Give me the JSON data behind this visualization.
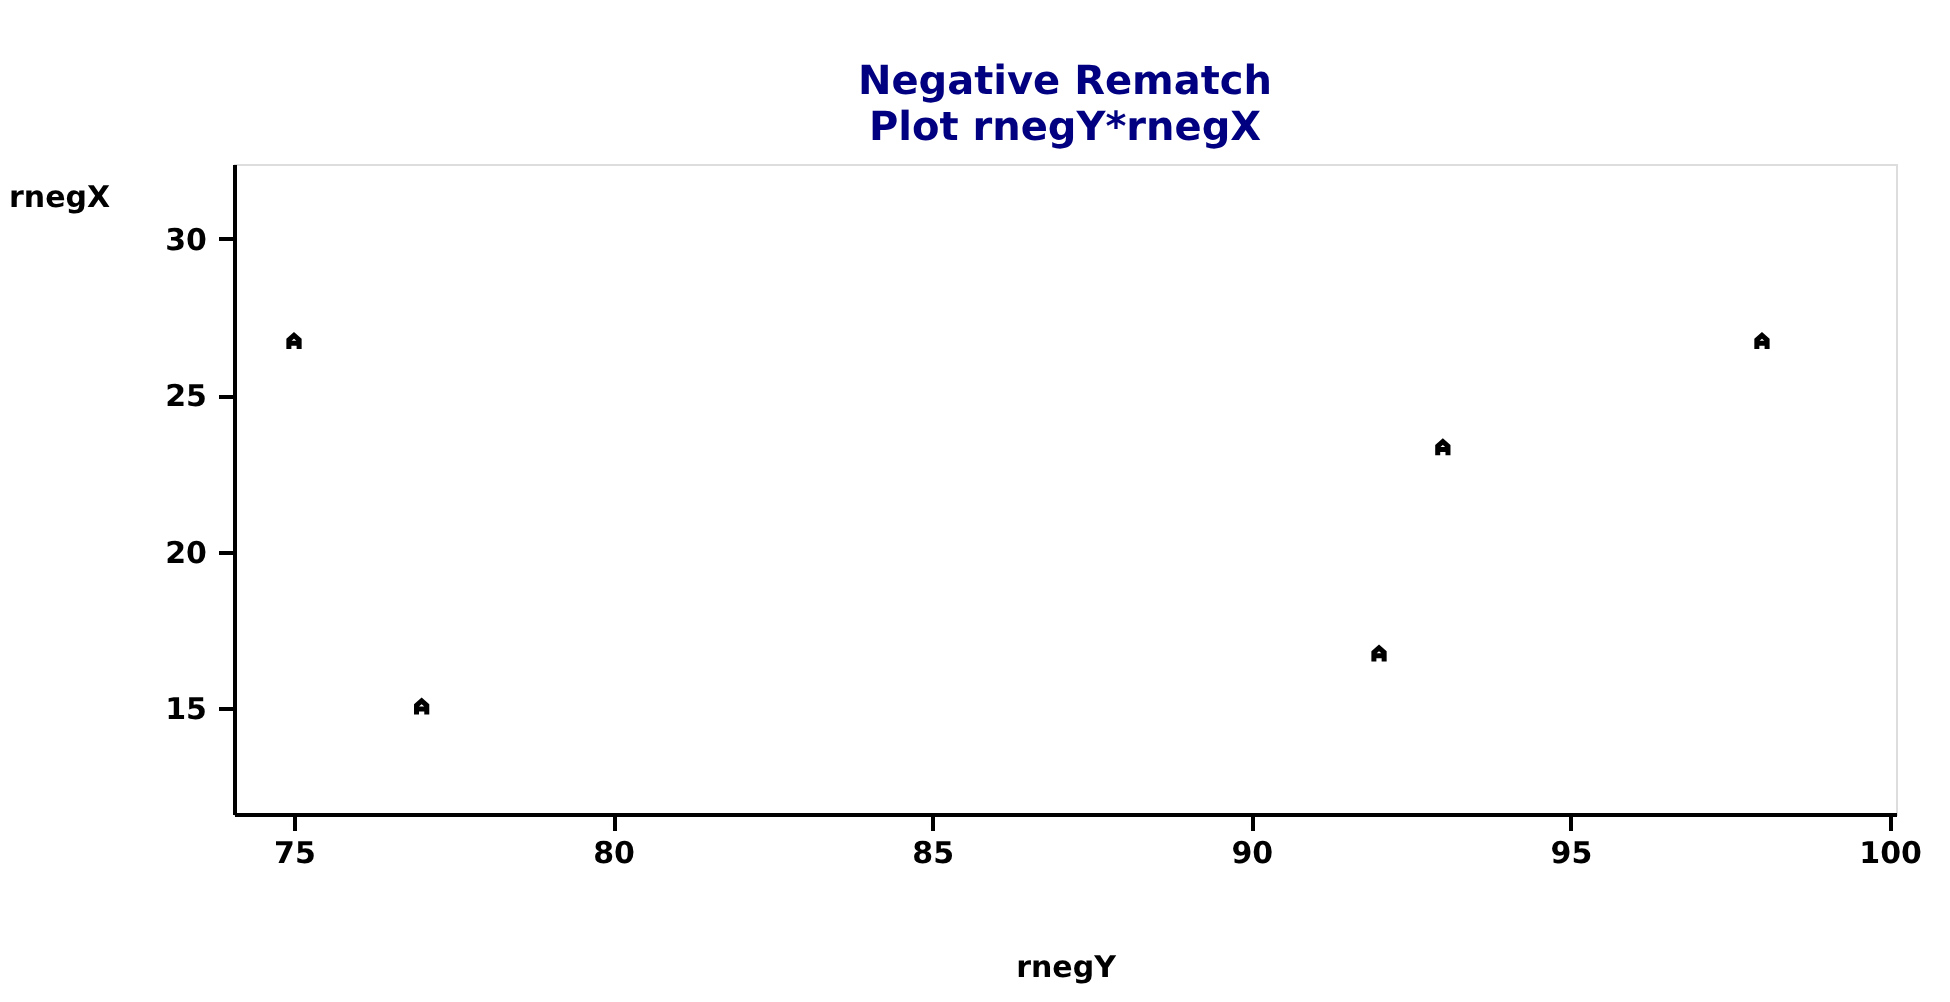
{
  "chart_data": {
    "type": "scatter",
    "title": "Negative Rematch",
    "subtitle": "Plot rnegY*rnegX",
    "xlabel": "rnegY",
    "ylabel": "rnegX",
    "x": [
      75,
      77,
      92,
      93,
      98
    ],
    "series": [
      {
        "color": "#000000",
        "values": [
          26.7,
          15,
          16.7,
          23.3,
          26.7
        ]
      }
    ],
    "xlim": [
      74.06,
      100.1
    ],
    "xticks": [
      75,
      80,
      85,
      90,
      95,
      100
    ],
    "ylim": [
      11.6,
      32.4
    ],
    "yticks": [
      15,
      20,
      25,
      30
    ],
    "grid": false
  }
}
